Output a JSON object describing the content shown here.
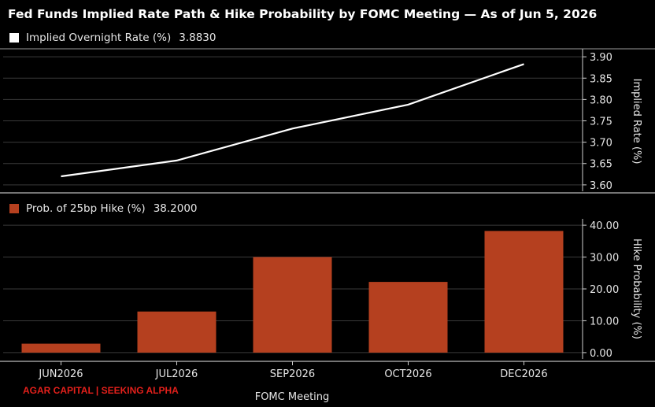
{
  "title": "Fed Funds Implied Rate Path & Hike Probability by FOMC Meeting — As of Jun 5, 2026",
  "credit": "AGAR CAPITAL | SEEKING ALPHA",
  "colors": {
    "background": "#000000",
    "line": "#ffffff",
    "bar": "#b5401f",
    "grid": "#3a3a3a",
    "credit": "#e3201b"
  },
  "chart_data": [
    {
      "type": "line",
      "legend": {
        "label": "Implied Overnight Rate (%)",
        "value": "3.8830",
        "position": "top-left"
      },
      "categories": [
        "JUN2026",
        "JUL2026",
        "SEP2026",
        "OCT2026",
        "DEC2026"
      ],
      "series": [
        {
          "name": "Implied Overnight Rate (%)",
          "values": [
            3.62,
            3.657,
            3.732,
            3.788,
            3.883
          ]
        }
      ],
      "ylabel": "Implied Rate (%)",
      "ylim": [
        3.585,
        3.915
      ],
      "yticks": [
        "3.60",
        "3.65",
        "3.70",
        "3.75",
        "3.80",
        "3.85",
        "3.90"
      ],
      "grid": true,
      "yaxis_side": "right"
    },
    {
      "type": "bar",
      "legend": {
        "label": "Prob. of 25bp Hike (%)",
        "value": "38.2000",
        "position": "top-left"
      },
      "categories": [
        "JUN2026",
        "JUL2026",
        "SEP2026",
        "OCT2026",
        "DEC2026"
      ],
      "series": [
        {
          "name": "Prob. of 25bp Hike (%)",
          "values": [
            2.8,
            12.9,
            30.0,
            22.2,
            38.2
          ]
        }
      ],
      "xlabel": "FOMC Meeting",
      "ylabel": "Hike Probability (%)",
      "ylim": [
        -2,
        42
      ],
      "yticks": [
        "0.00",
        "10.00",
        "20.00",
        "30.00",
        "40.00"
      ],
      "grid": true,
      "yaxis_side": "right"
    }
  ]
}
